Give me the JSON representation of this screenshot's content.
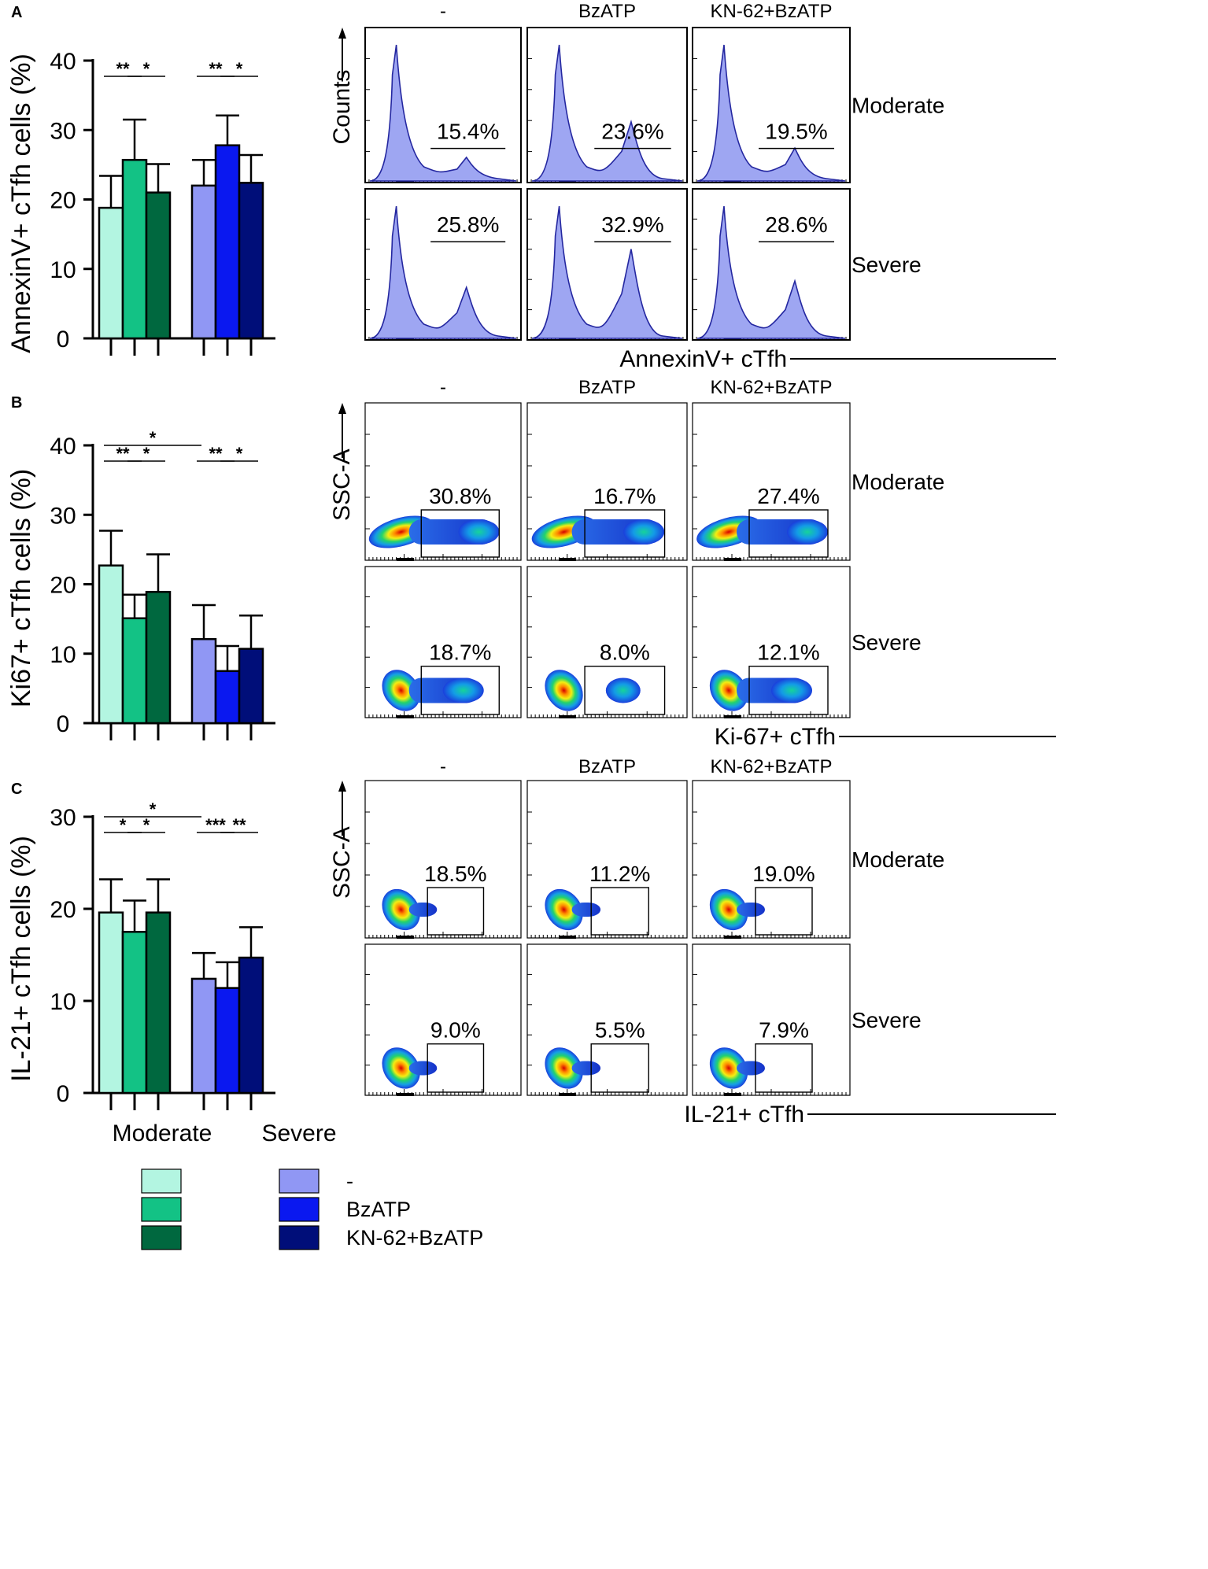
{
  "panels": [
    {
      "letter": "A",
      "bar": {
        "ylabel": "AnnexinV+ cTfh cells (%)",
        "ylim": [
          0,
          40
        ],
        "ticks": [
          "0",
          "10",
          "20",
          "30",
          "40"
        ],
        "moderate": {
          "values": [
            18.8,
            25.7,
            21.0
          ],
          "errors": [
            4.6,
            5.8,
            4.1
          ]
        },
        "severe": {
          "values": [
            22.0,
            27.8,
            22.4
          ],
          "errors": [
            3.7,
            4.3,
            4.0
          ]
        },
        "sig": [
          {
            "label": "**",
            "from": 0,
            "to": 1,
            "level": 0
          },
          {
            "label": "*",
            "from": 1,
            "to": 2,
            "level": 0
          },
          {
            "label": "**",
            "from": 3,
            "to": 4,
            "level": 0
          },
          {
            "label": "*",
            "from": 4,
            "to": 5,
            "level": 0
          }
        ]
      },
      "flow": {
        "type": "histogram",
        "columns": [
          "-",
          "BzATP",
          "KN-62+BzATP"
        ],
        "rows": [
          "Moderate",
          "Severe"
        ],
        "pct": [
          [
            "15.4%",
            "23.6%",
            "19.5%"
          ],
          [
            "25.8%",
            "32.9%",
            "28.6%"
          ]
        ],
        "second_peak": [
          [
            0.18,
            0.45,
            0.25
          ],
          [
            0.4,
            0.7,
            0.45
          ]
        ],
        "yaxis": "Counts",
        "xaxis": "AnnexinV+ cTfh"
      }
    },
    {
      "letter": "B",
      "bar": {
        "ylabel": "Ki67+ cTfh cells (%)",
        "ylim": [
          0,
          40
        ],
        "ticks": [
          "0",
          "10",
          "20",
          "30",
          "40"
        ],
        "moderate": {
          "values": [
            22.7,
            15.1,
            18.9
          ],
          "errors": [
            5.0,
            3.4,
            5.4
          ]
        },
        "severe": {
          "values": [
            12.1,
            7.5,
            10.7
          ],
          "errors": [
            4.9,
            3.6,
            4.8
          ]
        },
        "sig": [
          {
            "label": "*",
            "from": 0,
            "to": 3,
            "level": 1
          },
          {
            "label": "**",
            "from": 0,
            "to": 1,
            "level": 0
          },
          {
            "label": "*",
            "from": 1,
            "to": 2,
            "level": 0
          },
          {
            "label": "**",
            "from": 3,
            "to": 4,
            "level": 0
          },
          {
            "label": "*",
            "from": 4,
            "to": 5,
            "level": 0
          }
        ]
      },
      "flow": {
        "type": "density",
        "columns": [
          "-",
          "BzATP",
          "KN-62+BzATP"
        ],
        "rows": [
          "Moderate",
          "Severe"
        ],
        "pct": [
          [
            "30.8%",
            "16.7%",
            "27.4%"
          ],
          [
            "18.7%",
            "8.0%",
            "12.1%"
          ]
        ],
        "yaxis": "SSC-A",
        "xaxis": "Ki-67+ cTfh"
      }
    },
    {
      "letter": "C",
      "bar": {
        "ylabel": "IL-21+ cTfh cells (%)",
        "ylim": [
          0,
          30
        ],
        "ticks": [
          "0",
          "10",
          "20",
          "30"
        ],
        "moderate": {
          "values": [
            19.6,
            17.5,
            19.6
          ],
          "errors": [
            3.6,
            3.4,
            3.6
          ]
        },
        "severe": {
          "values": [
            12.4,
            11.4,
            14.7
          ],
          "errors": [
            2.8,
            2.8,
            3.3
          ]
        },
        "sig": [
          {
            "label": "*",
            "from": 0,
            "to": 3,
            "level": 1
          },
          {
            "label": "*",
            "from": 0,
            "to": 1,
            "level": 0
          },
          {
            "label": "*",
            "from": 1,
            "to": 2,
            "level": 0
          },
          {
            "label": "***",
            "from": 3,
            "to": 4,
            "level": 0
          },
          {
            "label": "**",
            "from": 4,
            "to": 5,
            "level": 0
          }
        ]
      },
      "flow": {
        "type": "density",
        "columns": [
          "-",
          "BzATP",
          "KN-62+BzATP"
        ],
        "rows": [
          "Moderate",
          "Severe"
        ],
        "pct": [
          [
            "18.5%",
            "11.2%",
            "19.0%"
          ],
          [
            "9.0%",
            "5.5%",
            "7.9%"
          ]
        ],
        "yaxis": "SSC-A",
        "xaxis": "IL-21+ cTfh"
      }
    }
  ],
  "groups": [
    "Moderate",
    "Severe"
  ],
  "legend": {
    "labels": [
      "-",
      "BzATP",
      "KN-62+BzATP"
    ],
    "moderate_colors": [
      "#b3f5e1",
      "#13c285",
      "#00683f"
    ],
    "severe_colors": [
      "#9097f4",
      "#0a18f0",
      "#000e79"
    ]
  },
  "chart_data": [
    {
      "type": "bar",
      "title": "A",
      "ylabel": "AnnexinV+ cTfh cells (%)",
      "ylim": [
        0,
        40
      ],
      "categories": [
        "Moderate",
        "Severe"
      ],
      "series": [
        {
          "name": "-",
          "values": [
            18.8,
            22.0
          ],
          "errors": [
            4.6,
            3.7
          ]
        },
        {
          "name": "BzATP",
          "values": [
            25.7,
            27.8
          ],
          "errors": [
            5.8,
            4.3
          ]
        },
        {
          "name": "KN-62+BzATP",
          "values": [
            21.0,
            22.4
          ],
          "errors": [
            4.1,
            4.0
          ]
        }
      ]
    },
    {
      "type": "bar",
      "title": "B",
      "ylabel": "Ki67+ cTfh cells (%)",
      "ylim": [
        0,
        40
      ],
      "categories": [
        "Moderate",
        "Severe"
      ],
      "series": [
        {
          "name": "-",
          "values": [
            22.7,
            12.1
          ],
          "errors": [
            5.0,
            4.9
          ]
        },
        {
          "name": "BzATP",
          "values": [
            15.1,
            7.5
          ],
          "errors": [
            3.4,
            3.6
          ]
        },
        {
          "name": "KN-62+BzATP",
          "values": [
            18.9,
            10.7
          ],
          "errors": [
            5.4,
            4.8
          ]
        }
      ]
    },
    {
      "type": "bar",
      "title": "C",
      "ylabel": "IL-21+ cTfh cells (%)",
      "ylim": [
        0,
        30
      ],
      "categories": [
        "Moderate",
        "Severe"
      ],
      "series": [
        {
          "name": "-",
          "values": [
            19.6,
            12.4
          ],
          "errors": [
            3.6,
            2.8
          ]
        },
        {
          "name": "BzATP",
          "values": [
            17.5,
            11.4
          ],
          "errors": [
            3.4,
            2.8
          ]
        },
        {
          "name": "KN-62+BzATP",
          "values": [
            19.6,
            14.7
          ],
          "errors": [
            3.6,
            3.3
          ]
        }
      ]
    }
  ]
}
